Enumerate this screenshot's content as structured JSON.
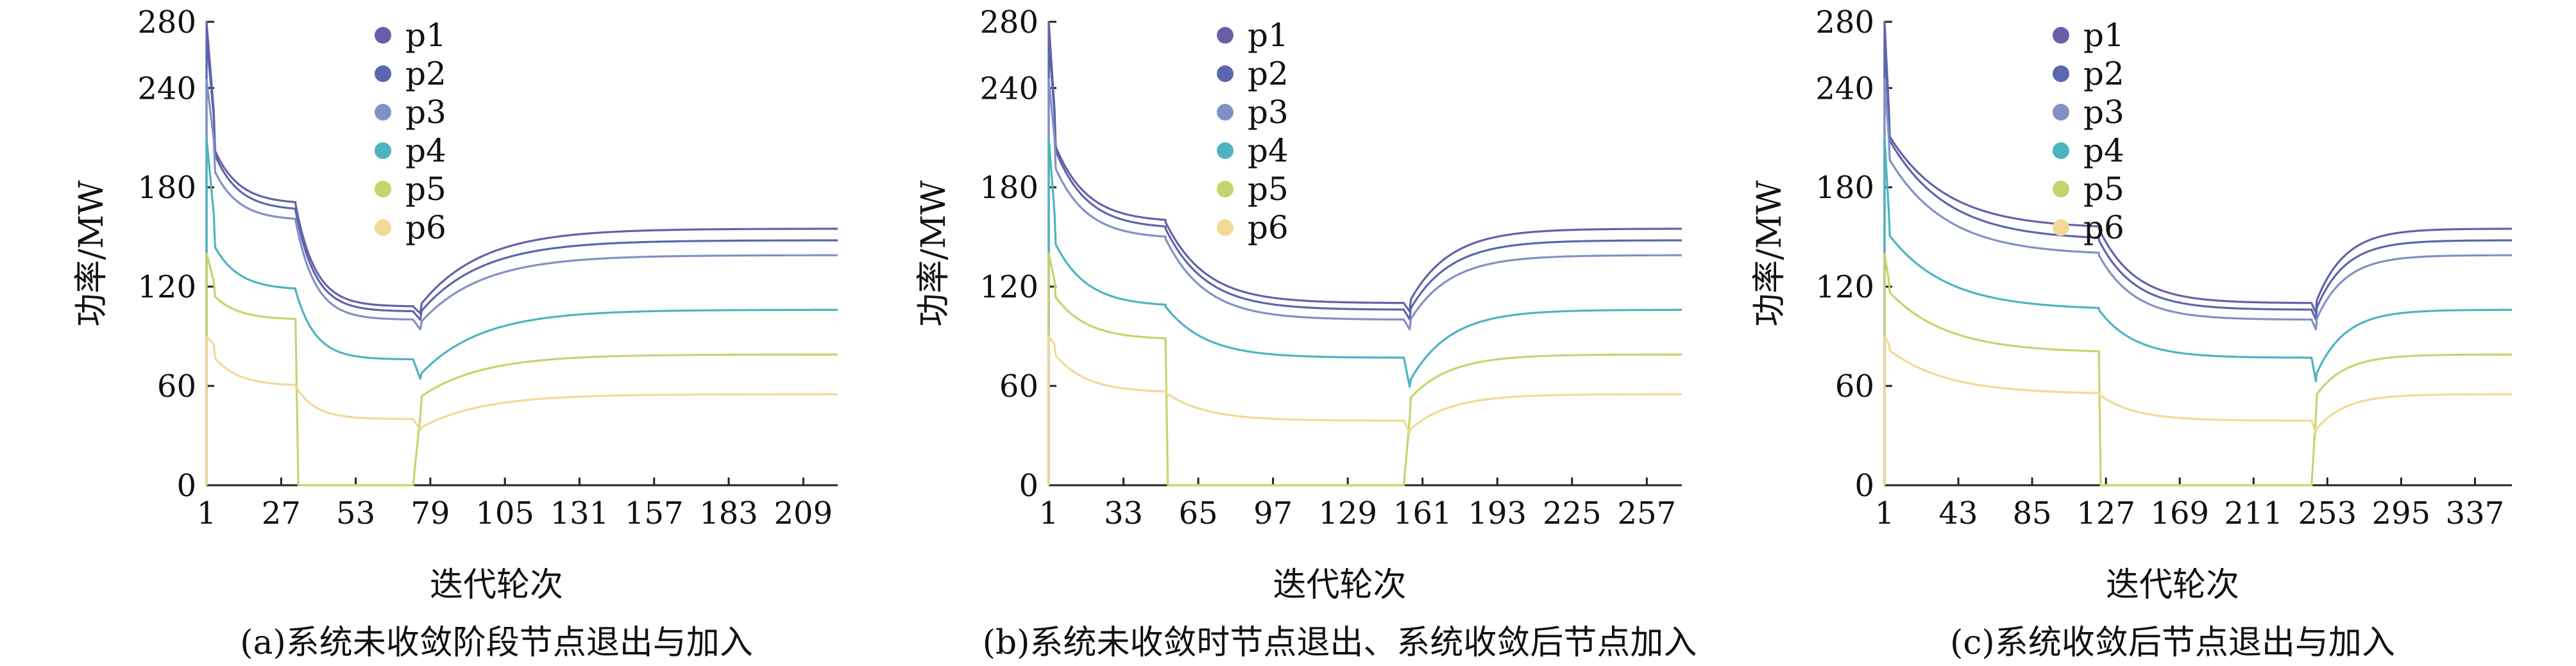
{
  "palette": {
    "p1": "#6a5ea9",
    "p2": "#5a66ad",
    "p3": "#8390c6",
    "p4": "#4db4bf",
    "p5": "#c3d56c",
    "p6": "#f1da95"
  },
  "chart_data": [
    {
      "type": "line",
      "caption": "(a)系统未收敛阶段节点退出与加入",
      "xlabel": "迭代轮次",
      "ylabel": "功率/MW",
      "xlim": [
        1,
        221
      ],
      "ylim": [
        0,
        280
      ],
      "xticks": [
        1,
        27,
        53,
        79,
        105,
        131,
        157,
        183,
        209
      ],
      "yticks": [
        0,
        60,
        120,
        180,
        240,
        280
      ],
      "legend": "top-center",
      "grid": false,
      "events": {
        "exit_x": 32,
        "join_x": 73
      },
      "series": [
        {
          "name": "p1",
          "start": 280,
          "pre": 216,
          "exit_level": 170,
          "dip": 108,
          "join_level": 103,
          "final": 155
        },
        {
          "name": "p2",
          "start": 270,
          "pre": 214,
          "exit_level": 166,
          "dip": 105,
          "join_level": 99,
          "final": 148
        },
        {
          "name": "p3",
          "start": 245,
          "pre": 202,
          "exit_level": 160,
          "dip": 100,
          "join_level": 93,
          "final": 139
        },
        {
          "name": "p4",
          "start": 210,
          "pre": 155,
          "exit_level": 118,
          "dip": 76,
          "join_level": 62,
          "final": 106
        },
        {
          "name": "p5",
          "start": 140,
          "pre": 120,
          "exit_level": 100,
          "dip": 0,
          "join_level": 50,
          "final": 79
        },
        {
          "name": "p6",
          "start": 90,
          "pre": 84,
          "exit_level": 60,
          "dip": 40,
          "join_level": 32,
          "final": 55
        }
      ]
    },
    {
      "type": "line",
      "caption": "(b)系统未收敛时节点退出、系统收敛后节点加入",
      "xlabel": "迭代轮次",
      "ylabel": "功率/MW",
      "xlim": [
        1,
        272
      ],
      "ylim": [
        0,
        280
      ],
      "xticks": [
        1,
        33,
        65,
        97,
        129,
        161,
        193,
        225,
        257
      ],
      "yticks": [
        0,
        60,
        120,
        180,
        240,
        280
      ],
      "legend": "top-center",
      "grid": false,
      "events": {
        "exit_x": 51,
        "join_x": 153
      },
      "series": [
        {
          "name": "p1",
          "start": 280,
          "pre": 216,
          "exit_level": 159,
          "dip": 110,
          "join_level": 104,
          "final": 155
        },
        {
          "name": "p2",
          "start": 270,
          "pre": 214,
          "exit_level": 155,
          "dip": 106,
          "join_level": 99,
          "final": 148
        },
        {
          "name": "p3",
          "start": 245,
          "pre": 202,
          "exit_level": 149,
          "dip": 100,
          "join_level": 93,
          "final": 139
        },
        {
          "name": "p4",
          "start": 210,
          "pre": 155,
          "exit_level": 108,
          "dip": 77,
          "join_level": 56,
          "final": 106
        },
        {
          "name": "p5",
          "start": 140,
          "pre": 120,
          "exit_level": 88,
          "dip": 0,
          "join_level": 48,
          "final": 79
        },
        {
          "name": "p6",
          "start": 90,
          "pre": 84,
          "exit_level": 56,
          "dip": 39,
          "join_level": 30,
          "final": 55
        }
      ]
    },
    {
      "type": "line",
      "caption": "(c)系统收敛后节点退出与加入",
      "xlabel": "迭代轮次",
      "ylabel": "功率/MW",
      "xlim": [
        1,
        358
      ],
      "ylim": [
        0,
        280
      ],
      "xticks": [
        1,
        43,
        85,
        127,
        169,
        211,
        253,
        295,
        337
      ],
      "yticks": [
        0,
        60,
        120,
        180,
        240,
        280
      ],
      "legend": "top-center",
      "grid": false,
      "events": {
        "exit_x": 123,
        "join_x": 244
      },
      "series": [
        {
          "name": "p1",
          "start": 280,
          "pre": 216,
          "exit_level": 155,
          "dip": 110,
          "join_level": 103,
          "final": 155
        },
        {
          "name": "p2",
          "start": 270,
          "pre": 214,
          "exit_level": 148,
          "dip": 106,
          "join_level": 99,
          "final": 148
        },
        {
          "name": "p3",
          "start": 245,
          "pre": 202,
          "exit_level": 139,
          "dip": 100,
          "join_level": 93,
          "final": 139
        },
        {
          "name": "p4",
          "start": 210,
          "pre": 155,
          "exit_level": 106,
          "dip": 77,
          "join_level": 60,
          "final": 106
        },
        {
          "name": "p5",
          "start": 140,
          "pre": 120,
          "exit_level": 80,
          "dip": 0,
          "join_level": 50,
          "final": 79
        },
        {
          "name": "p6",
          "start": 90,
          "pre": 84,
          "exit_level": 55,
          "dip": 39,
          "join_level": 30,
          "final": 55
        }
      ]
    }
  ]
}
